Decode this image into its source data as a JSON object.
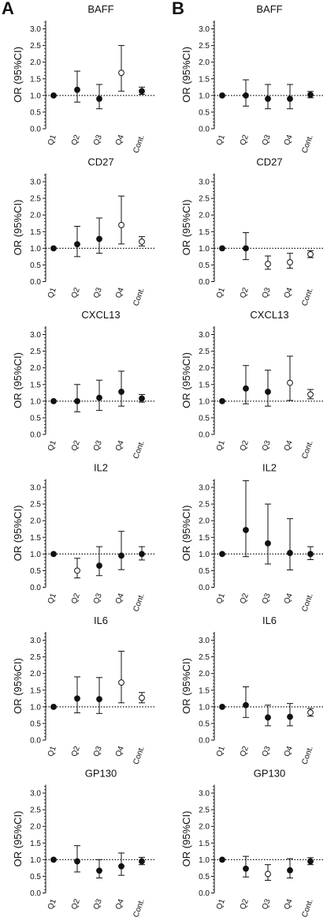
{
  "panels": [
    {
      "letter": "A"
    },
    {
      "letter": "B"
    }
  ],
  "chart_data": [
    {
      "type": "scatter",
      "panel": "A",
      "title": "BAFF",
      "ylabel": "OR (95%CI)",
      "ylim": [
        0,
        3.25
      ],
      "yticks": [
        "0.0",
        "0.5",
        "1.0",
        "1.5",
        "2.0",
        "2.5",
        "3.0"
      ],
      "reference_line": 1.0,
      "categories": [
        "Q1",
        "Q2",
        "Q3",
        "Q4",
        "Cont."
      ],
      "points": [
        {
          "category": "Q1",
          "or": 1.0,
          "ci_low": 1.0,
          "ci_high": 1.0,
          "marker": "filled"
        },
        {
          "category": "Q2",
          "or": 1.17,
          "ci_low": 0.8,
          "ci_high": 1.73,
          "marker": "filled"
        },
        {
          "category": "Q3",
          "or": 0.9,
          "ci_low": 0.6,
          "ci_high": 1.33,
          "marker": "filled"
        },
        {
          "category": "Q4",
          "or": 1.68,
          "ci_low": 1.13,
          "ci_high": 2.5,
          "marker": "open"
        },
        {
          "category": "Cont.",
          "or": 1.13,
          "ci_low": 1.03,
          "ci_high": 1.25,
          "marker": "filled"
        }
      ]
    },
    {
      "type": "scatter",
      "panel": "B",
      "title": "BAFF",
      "ylabel": "OR (95%CI)",
      "ylim": [
        0,
        3.25
      ],
      "yticks": [
        "0.0",
        "0.5",
        "1.0",
        "1.5",
        "2.0",
        "2.5",
        "3.0"
      ],
      "reference_line": 1.0,
      "categories": [
        "Q1",
        "Q2",
        "Q3",
        "Q4",
        "Cont."
      ],
      "points": [
        {
          "category": "Q1",
          "or": 1.0,
          "ci_low": 1.0,
          "ci_high": 1.0,
          "marker": "filled"
        },
        {
          "category": "Q2",
          "or": 1.0,
          "ci_low": 0.68,
          "ci_high": 1.47,
          "marker": "filled"
        },
        {
          "category": "Q3",
          "or": 0.9,
          "ci_low": 0.6,
          "ci_high": 1.33,
          "marker": "filled"
        },
        {
          "category": "Q4",
          "or": 0.9,
          "ci_low": 0.6,
          "ci_high": 1.33,
          "marker": "filled"
        },
        {
          "category": "Cont.",
          "or": 1.02,
          "ci_low": 0.93,
          "ci_high": 1.12,
          "marker": "filled"
        }
      ]
    },
    {
      "type": "scatter",
      "panel": "A",
      "title": "CD27",
      "ylabel": "OR (95%CI)",
      "ylim": [
        0,
        3.25
      ],
      "yticks": [
        "0.0",
        "0.5",
        "1.0",
        "1.5",
        "2.0",
        "2.5",
        "3.0"
      ],
      "reference_line": 1.0,
      "categories": [
        "Q1",
        "Q2",
        "Q3",
        "Q4",
        "Cont."
      ],
      "points": [
        {
          "category": "Q1",
          "or": 1.0,
          "ci_low": 1.0,
          "ci_high": 1.0,
          "marker": "filled"
        },
        {
          "category": "Q2",
          "or": 1.12,
          "ci_low": 0.75,
          "ci_high": 1.66,
          "marker": "filled"
        },
        {
          "category": "Q3",
          "or": 1.28,
          "ci_low": 0.85,
          "ci_high": 1.91,
          "marker": "filled"
        },
        {
          "category": "Q4",
          "or": 1.7,
          "ci_low": 1.13,
          "ci_high": 2.57,
          "marker": "open"
        },
        {
          "category": "Cont.",
          "or": 1.2,
          "ci_low": 1.07,
          "ci_high": 1.35,
          "marker": "open"
        }
      ]
    },
    {
      "type": "scatter",
      "panel": "B",
      "title": "CD27",
      "ylabel": "OR (95%CI)",
      "ylim": [
        0,
        3.25
      ],
      "yticks": [
        "0.0",
        "0.5",
        "1.0",
        "1.5",
        "2.0",
        "2.5",
        "3.0"
      ],
      "reference_line": 1.0,
      "categories": [
        "Q1",
        "Q2",
        "Q3",
        "Q4",
        "Cont."
      ],
      "points": [
        {
          "category": "Q1",
          "or": 1.0,
          "ci_low": 1.0,
          "ci_high": 1.0,
          "marker": "filled"
        },
        {
          "category": "Q2",
          "or": 1.0,
          "ci_low": 0.66,
          "ci_high": 1.47,
          "marker": "filled"
        },
        {
          "category": "Q3",
          "or": 0.53,
          "ci_low": 0.37,
          "ci_high": 0.77,
          "marker": "open"
        },
        {
          "category": "Q4",
          "or": 0.58,
          "ci_low": 0.4,
          "ci_high": 0.85,
          "marker": "open"
        },
        {
          "category": "Cont.",
          "or": 0.82,
          "ci_low": 0.72,
          "ci_high": 0.93,
          "marker": "open"
        }
      ]
    },
    {
      "type": "scatter",
      "panel": "A",
      "title": "CXCL13",
      "ylabel": "OR (95%CI)",
      "ylim": [
        0,
        3.25
      ],
      "yticks": [
        "0.0",
        "0.5",
        "1.0",
        "1.5",
        "2.0",
        "2.5",
        "3.0"
      ],
      "reference_line": 1.0,
      "categories": [
        "Q1",
        "Q2",
        "Q3",
        "Q4",
        "Cont."
      ],
      "points": [
        {
          "category": "Q1",
          "or": 1.0,
          "ci_low": 1.0,
          "ci_high": 1.0,
          "marker": "filled"
        },
        {
          "category": "Q2",
          "or": 1.0,
          "ci_low": 0.68,
          "ci_high": 1.5,
          "marker": "filled"
        },
        {
          "category": "Q3",
          "or": 1.1,
          "ci_low": 0.72,
          "ci_high": 1.63,
          "marker": "filled"
        },
        {
          "category": "Q4",
          "or": 1.28,
          "ci_low": 0.85,
          "ci_high": 1.9,
          "marker": "filled"
        },
        {
          "category": "Cont.",
          "or": 1.08,
          "ci_low": 0.97,
          "ci_high": 1.2,
          "marker": "filled"
        }
      ]
    },
    {
      "type": "scatter",
      "panel": "B",
      "title": "CXCL13",
      "ylabel": "OR (95%CI)",
      "ylim": [
        0,
        3.25
      ],
      "yticks": [
        "0.0",
        "0.5",
        "1.0",
        "1.5",
        "2.0",
        "2.5",
        "3.0"
      ],
      "reference_line": 1.0,
      "categories": [
        "Q1",
        "Q2",
        "Q3",
        "Q4",
        "Cont."
      ],
      "points": [
        {
          "category": "Q1",
          "or": 1.0,
          "ci_low": 1.0,
          "ci_high": 1.0,
          "marker": "filled"
        },
        {
          "category": "Q2",
          "or": 1.38,
          "ci_low": 0.92,
          "ci_high": 2.07,
          "marker": "filled"
        },
        {
          "category": "Q3",
          "or": 1.28,
          "ci_low": 0.85,
          "ci_high": 1.93,
          "marker": "filled"
        },
        {
          "category": "Q4",
          "or": 1.55,
          "ci_low": 1.02,
          "ci_high": 2.35,
          "marker": "open"
        },
        {
          "category": "Cont.",
          "or": 1.2,
          "ci_low": 1.07,
          "ci_high": 1.35,
          "marker": "open"
        }
      ]
    },
    {
      "type": "scatter",
      "panel": "A",
      "title": "IL2",
      "ylabel": "OR (95%CI)",
      "ylim": [
        0,
        3.25
      ],
      "yticks": [
        "0.0",
        "0.5",
        "1.0",
        "1.5",
        "2.0",
        "2.5",
        "3.0"
      ],
      "reference_line": 1.0,
      "categories": [
        "Q1",
        "Q2",
        "Q3",
        "Q4",
        "Cont."
      ],
      "points": [
        {
          "category": "Q1",
          "or": 1.0,
          "ci_low": 1.0,
          "ci_high": 1.0,
          "marker": "filled"
        },
        {
          "category": "Q2",
          "or": 0.5,
          "ci_low": 0.28,
          "ci_high": 0.87,
          "marker": "open"
        },
        {
          "category": "Q3",
          "or": 0.65,
          "ci_low": 0.35,
          "ci_high": 1.22,
          "marker": "filled"
        },
        {
          "category": "Q4",
          "or": 0.95,
          "ci_low": 0.53,
          "ci_high": 1.68,
          "marker": "filled"
        },
        {
          "category": "Cont.",
          "or": 1.0,
          "ci_low": 0.82,
          "ci_high": 1.22,
          "marker": "filled"
        }
      ]
    },
    {
      "type": "scatter",
      "panel": "B",
      "title": "IL2",
      "ylabel": "OR (95%CI)",
      "ylim": [
        0,
        3.25
      ],
      "yticks": [
        "0.0",
        "0.5",
        "1.0",
        "1.5",
        "2.0",
        "2.5",
        "3.0"
      ],
      "reference_line": 1.0,
      "categories": [
        "Q1",
        "Q2",
        "Q3",
        "Q4",
        "Cont."
      ],
      "points": [
        {
          "category": "Q1",
          "or": 1.0,
          "ci_low": 1.0,
          "ci_high": 1.0,
          "marker": "filled"
        },
        {
          "category": "Q2",
          "or": 1.72,
          "ci_low": 0.92,
          "ci_high": 3.2,
          "marker": "filled"
        },
        {
          "category": "Q3",
          "or": 1.32,
          "ci_low": 0.7,
          "ci_high": 2.5,
          "marker": "filled"
        },
        {
          "category": "Q4",
          "or": 1.03,
          "ci_low": 0.52,
          "ci_high": 2.06,
          "marker": "filled"
        },
        {
          "category": "Cont.",
          "or": 1.0,
          "ci_low": 0.83,
          "ci_high": 1.22,
          "marker": "filled"
        }
      ]
    },
    {
      "type": "scatter",
      "panel": "A",
      "title": "IL6",
      "ylabel": "OR (95%CI)",
      "ylim": [
        0,
        3.25
      ],
      "yticks": [
        "0.0",
        "0.5",
        "1.0",
        "1.5",
        "2.0",
        "2.5",
        "3.0"
      ],
      "reference_line": 1.0,
      "categories": [
        "Q1",
        "Q2",
        "Q3",
        "Q4",
        "Cont."
      ],
      "points": [
        {
          "category": "Q1",
          "or": 1.0,
          "ci_low": 1.0,
          "ci_high": 1.0,
          "marker": "filled"
        },
        {
          "category": "Q2",
          "or": 1.25,
          "ci_low": 0.82,
          "ci_high": 1.9,
          "marker": "filled"
        },
        {
          "category": "Q3",
          "or": 1.23,
          "ci_low": 0.8,
          "ci_high": 1.88,
          "marker": "filled"
        },
        {
          "category": "Q4",
          "or": 1.73,
          "ci_low": 1.12,
          "ci_high": 2.67,
          "marker": "open"
        },
        {
          "category": "Cont.",
          "or": 1.27,
          "ci_low": 1.12,
          "ci_high": 1.43,
          "marker": "open"
        }
      ]
    },
    {
      "type": "scatter",
      "panel": "B",
      "title": "IL6",
      "ylabel": "OR (95%CI)",
      "ylim": [
        0,
        3.25
      ],
      "yticks": [
        "0.0",
        "0.5",
        "1.0",
        "1.5",
        "2.0",
        "2.5",
        "3.0"
      ],
      "reference_line": 1.0,
      "categories": [
        "Q1",
        "Q2",
        "Q3",
        "Q4",
        "Cont."
      ],
      "points": [
        {
          "category": "Q1",
          "or": 1.0,
          "ci_low": 1.0,
          "ci_high": 1.0,
          "marker": "filled"
        },
        {
          "category": "Q2",
          "or": 1.05,
          "ci_low": 0.68,
          "ci_high": 1.6,
          "marker": "filled"
        },
        {
          "category": "Q3",
          "or": 0.68,
          "ci_low": 0.43,
          "ci_high": 1.05,
          "marker": "filled"
        },
        {
          "category": "Q4",
          "or": 0.7,
          "ci_low": 0.43,
          "ci_high": 1.1,
          "marker": "filled"
        },
        {
          "category": "Cont.",
          "or": 0.83,
          "ci_low": 0.72,
          "ci_high": 0.95,
          "marker": "open"
        }
      ]
    },
    {
      "type": "scatter",
      "panel": "A",
      "title": "GP130",
      "ylabel": "OR (95%CI)",
      "ylim": [
        0,
        3.25
      ],
      "yticks": [
        "0.0",
        "0.5",
        "1.0",
        "1.5",
        "2.0",
        "2.5",
        "3.0"
      ],
      "reference_line": 1.0,
      "categories": [
        "Q1",
        "Q2",
        "Q3",
        "Q4",
        "Cont."
      ],
      "points": [
        {
          "category": "Q1",
          "or": 1.0,
          "ci_low": 1.0,
          "ci_high": 1.0,
          "marker": "filled"
        },
        {
          "category": "Q2",
          "or": 0.95,
          "ci_low": 0.63,
          "ci_high": 1.42,
          "marker": "filled"
        },
        {
          "category": "Q3",
          "or": 0.67,
          "ci_low": 0.45,
          "ci_high": 1.0,
          "marker": "filled"
        },
        {
          "category": "Q4",
          "or": 0.8,
          "ci_low": 0.53,
          "ci_high": 1.2,
          "marker": "filled"
        },
        {
          "category": "Cont.",
          "or": 0.95,
          "ci_low": 0.85,
          "ci_high": 1.07,
          "marker": "filled"
        }
      ]
    },
    {
      "type": "scatter",
      "panel": "B",
      "title": "GP130",
      "ylabel": "OR (95%CI)",
      "ylim": [
        0,
        3.25
      ],
      "yticks": [
        "0.0",
        "0.5",
        "1.0",
        "1.5",
        "2.0",
        "2.5",
        "3.0"
      ],
      "reference_line": 1.0,
      "categories": [
        "Q1",
        "Q2",
        "Q3",
        "Q4",
        "Cont."
      ],
      "points": [
        {
          "category": "Q1",
          "or": 1.0,
          "ci_low": 1.0,
          "ci_high": 1.0,
          "marker": "filled"
        },
        {
          "category": "Q2",
          "or": 0.73,
          "ci_low": 0.48,
          "ci_high": 1.1,
          "marker": "filled"
        },
        {
          "category": "Q3",
          "or": 0.57,
          "ci_low": 0.38,
          "ci_high": 0.85,
          "marker": "open"
        },
        {
          "category": "Q4",
          "or": 0.68,
          "ci_low": 0.45,
          "ci_high": 1.03,
          "marker": "filled"
        },
        {
          "category": "Cont.",
          "or": 0.95,
          "ci_low": 0.85,
          "ci_high": 1.06,
          "marker": "filled"
        }
      ]
    }
  ]
}
